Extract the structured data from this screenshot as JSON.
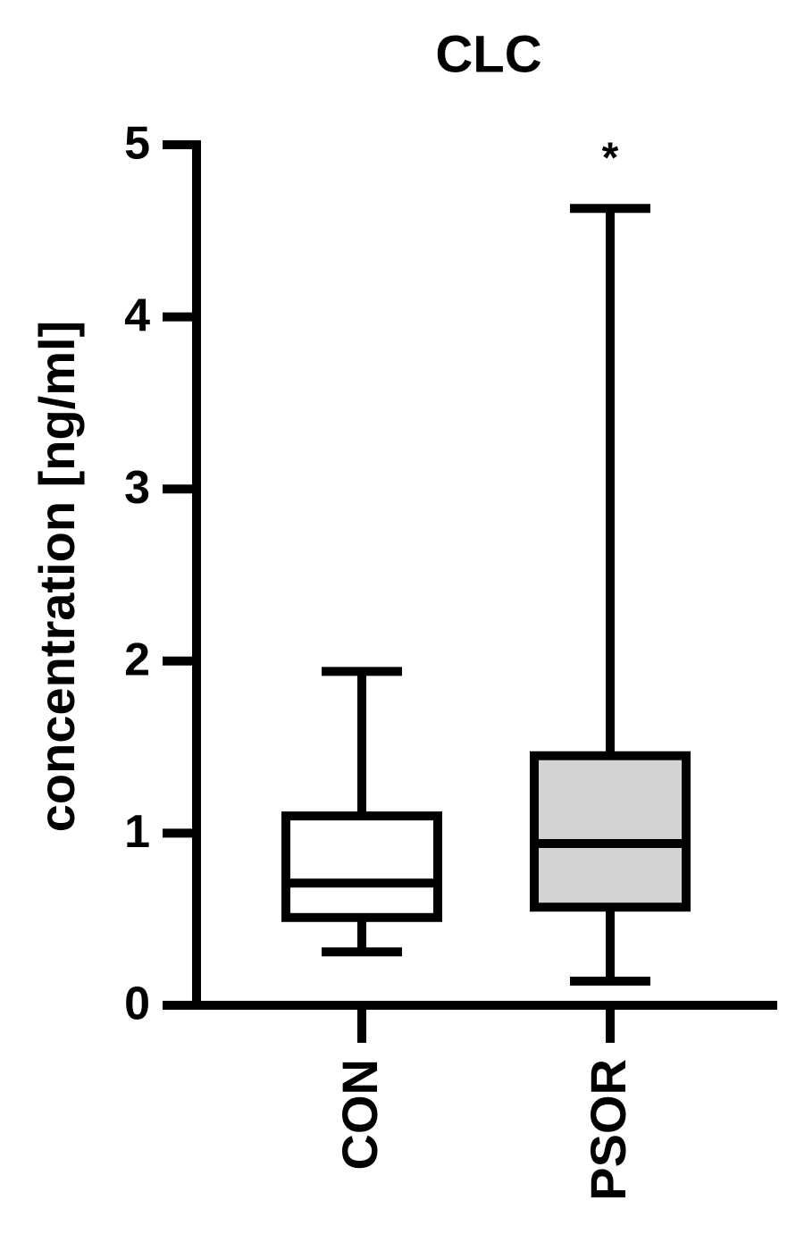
{
  "chart_data": {
    "type": "box",
    "title": "CLC",
    "ylabel": "concentration [ng/ml]",
    "categories": [
      "CON",
      "PSOR"
    ],
    "boxes": [
      {
        "min": 0.31,
        "q1": 0.51,
        "median": 0.71,
        "q3": 1.1,
        "max": 1.94
      },
      {
        "min": 0.14,
        "q1": 0.57,
        "median": 0.94,
        "q3": 1.45,
        "max": 4.63
      }
    ],
    "colors": [
      "#ffffff",
      "#d3d3d3"
    ],
    "annotation": "*",
    "ylim": [
      0,
      5
    ],
    "yticks": [
      0,
      1,
      2,
      3,
      4,
      5
    ]
  }
}
